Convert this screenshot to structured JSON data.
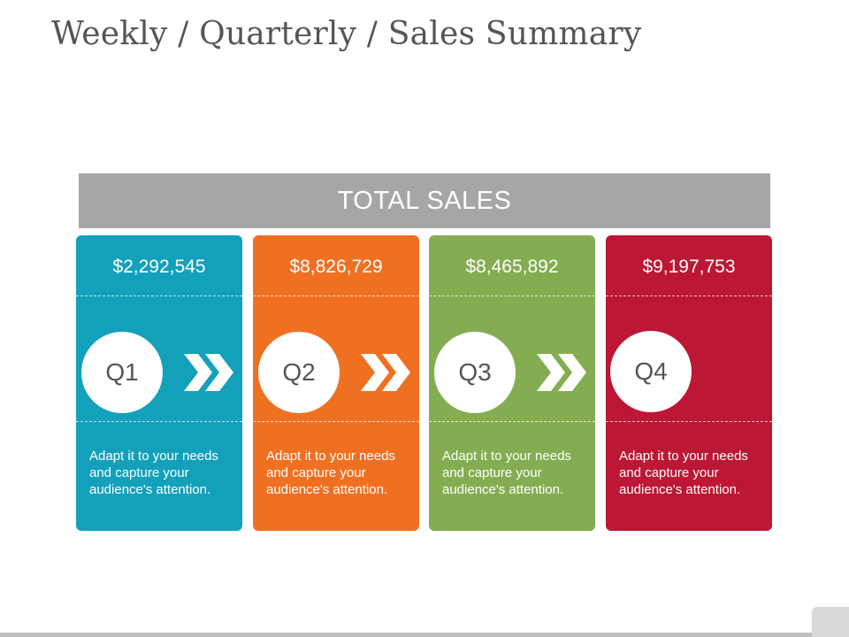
{
  "slide": {
    "title": "Weekly / Quarterly / Sales Summary",
    "header": "TOTAL SALES"
  },
  "cards": [
    {
      "amount": "$2,292,545",
      "quarter": "Q1",
      "text": "Adapt it to your needs and capture your audience's attention.",
      "color": "#13a0bb",
      "has_arrow": true
    },
    {
      "amount": "$8,826,729",
      "quarter": "Q2",
      "text": "Adapt it to your needs and capture your audience's attention.",
      "color": "#f07022",
      "has_arrow": true
    },
    {
      "amount": "$8,465,892",
      "quarter": "Q3",
      "text": "Adapt it to your needs and capture your audience's attention.",
      "color": "#84ad51",
      "has_arrow": true
    },
    {
      "amount": "$9,197,753",
      "quarter": "Q4",
      "text": "Adapt it to your needs and capture your audience's attention.",
      "color": "#bc1734",
      "has_arrow": false
    }
  ],
  "icons": {
    "arrow": "double-chevron-right-icon"
  }
}
